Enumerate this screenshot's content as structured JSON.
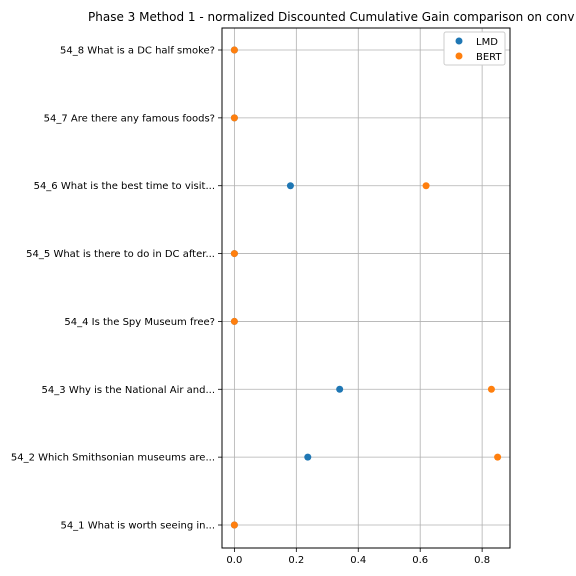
{
  "chart_data": {
    "type": "scatter",
    "title": "Phase 3 Method 1 - normalized Discounted Cumulative Gain comparison on conv",
    "xlabel": "",
    "ylabel": "",
    "xlim": [
      -0.04,
      0.89
    ],
    "x_ticks": [
      0.0,
      0.2,
      0.4,
      0.6,
      0.8
    ],
    "x_tick_labels": [
      "0.0",
      "0.2",
      "0.4",
      "0.6",
      "0.8"
    ],
    "grid": true,
    "legend_position": "top-right",
    "categories": [
      "54_1 What is worth seeing in...",
      "54_2 Which Smithsonian museums are...",
      "54_3 Why is the National Air and...",
      "54_4 Is the Spy Museum free?",
      "54_5 What is there to do in DC after...",
      "54_6 What is the best time to visit...",
      "54_7 Are there any famous foods?",
      "54_8 What is a DC half smoke?"
    ],
    "series": [
      {
        "name": "LMD",
        "color": "#1f77b4",
        "values": [
          0.0,
          0.237,
          0.34,
          0.0,
          0.0,
          0.181,
          0.0,
          0.0
        ]
      },
      {
        "name": "BERT",
        "color": "#ff7f0e",
        "values": [
          0.0,
          0.85,
          0.83,
          0.0,
          0.0,
          0.619,
          0.0,
          0.0
        ]
      }
    ]
  }
}
